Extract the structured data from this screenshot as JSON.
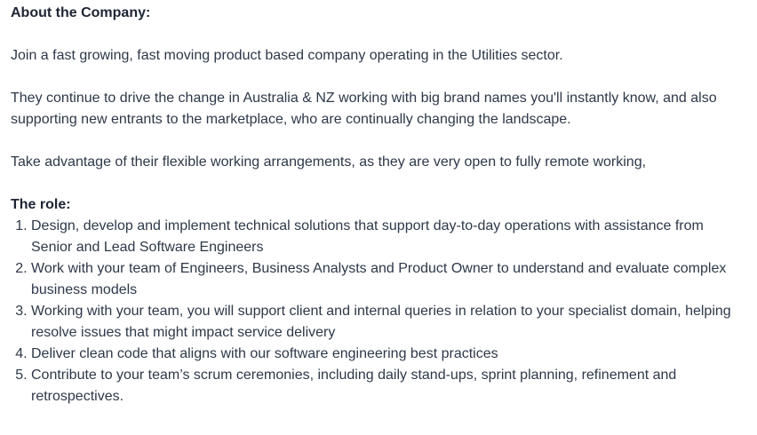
{
  "about": {
    "heading": "About the Company:",
    "paragraphs": [
      "Join a fast growing, fast moving product based company operating in the Utilities sector.",
      "They continue to drive the change in Australia & NZ working with big brand names you'll instantly know, and also supporting new entrants to the marketplace, who are continually changing the landscape.",
      "Take advantage of their flexible working arrangements, as they are very open to fully remote working,"
    ]
  },
  "role": {
    "heading": "The role:",
    "items": [
      "Design, develop and implement technical solutions that support day-to-day operations with assistance from Senior and Lead Software Engineers",
      "Work with your team of Engineers, Business Analysts and Product Owner to understand and evaluate complex business models",
      "Working with your team, you will support client and internal queries in relation to your specialist domain, helping resolve issues that might impact service delivery",
      "Deliver clean code that aligns with our software engineering best practices",
      "Contribute to your team’s scrum ceremonies, including daily stand-ups, sprint planning, refinement and retrospectives."
    ]
  }
}
